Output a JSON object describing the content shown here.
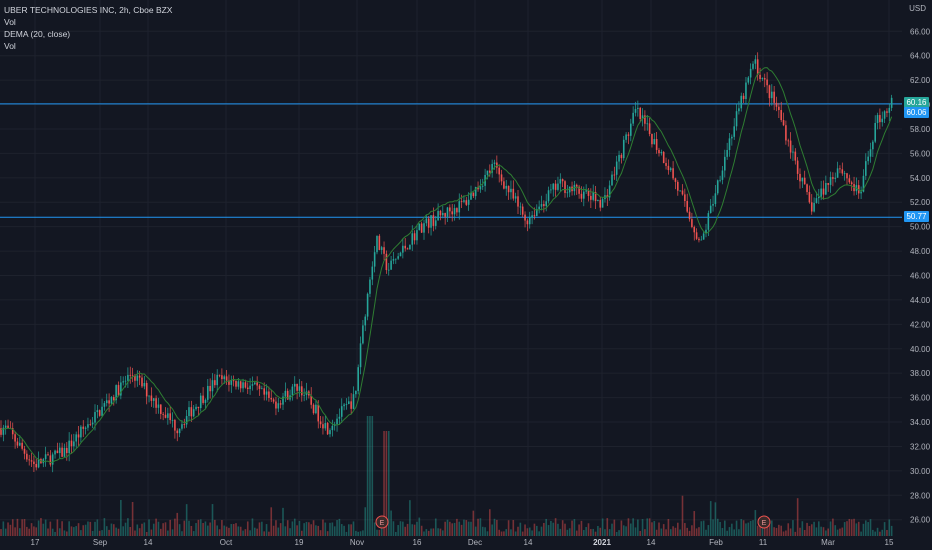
{
  "legend": {
    "symbol": "UBER TECHNOLOGIES INC, 2h, Cboe BZX",
    "vol1": "Vol",
    "dema": "DEMA (20, close)",
    "vol2": "Vol"
  },
  "axis": {
    "unit": "USD",
    "y_ticks": [
      "66.00",
      "64.00",
      "62.00",
      "60.00",
      "58.00",
      "56.00",
      "54.00",
      "52.00",
      "50.00",
      "48.00",
      "46.00",
      "44.00",
      "42.00",
      "40.00",
      "38.00",
      "36.00",
      "34.00",
      "32.00",
      "30.00",
      "28.00",
      "26.00"
    ],
    "x_ticks": [
      "17",
      "Sep",
      "14",
      "Oct",
      "19",
      "Nov",
      "16",
      "Dec",
      "14",
      "2021",
      "14",
      "Feb",
      "11",
      "Mar",
      "15"
    ],
    "x_major": [
      "2021"
    ]
  },
  "price_tags": {
    "current": "60.16",
    "line_upper": "60.06",
    "line_lower": "50.77"
  },
  "earnings_markers": [
    "E",
    "E"
  ],
  "colors": {
    "background": "#131722",
    "up": "#26a69a",
    "down": "#ef5350",
    "dema": "#2e7d32",
    "hline": "#2196f3",
    "grid": "#1e222d"
  },
  "chart_data": {
    "type": "candlestick",
    "title": "UBER TECHNOLOGIES INC, 2h, Cboe BZX",
    "ylabel": "USD",
    "ylim": [
      25,
      67
    ],
    "indicator": "DEMA (20, close)",
    "horizontal_lines": [
      60.06,
      50.77
    ],
    "last_price": 60.16,
    "price_path_approx": [
      {
        "x": "Aug 10",
        "close": 33.5
      },
      {
        "x": "Aug 17",
        "close": 30.5
      },
      {
        "x": "Aug 24",
        "close": 31.5
      },
      {
        "x": "Sep 1",
        "close": 34.5
      },
      {
        "x": "Sep 10",
        "close": 38.0
      },
      {
        "x": "Sep 21",
        "close": 33.5
      },
      {
        "x": "Oct 1",
        "close": 37.5
      },
      {
        "x": "Oct 9",
        "close": 37.0
      },
      {
        "x": "Oct 15",
        "close": 35.5
      },
      {
        "x": "Oct 21",
        "close": 37.0
      },
      {
        "x": "Oct 28",
        "close": 33.5
      },
      {
        "x": "Nov 4",
        "close": 36.0
      },
      {
        "x": "Nov 5",
        "close": 40.0
      },
      {
        "x": "Nov 9",
        "close": 49.0
      },
      {
        "x": "Nov 12",
        "close": 46.5
      },
      {
        "x": "Nov 20",
        "close": 50.0
      },
      {
        "x": "Dec 1",
        "close": 52.0
      },
      {
        "x": "Dec 8",
        "close": 55.0
      },
      {
        "x": "Dec 16",
        "close": 50.5
      },
      {
        "x": "Dec 24",
        "close": 53.5
      },
      {
        "x": "Jan 4",
        "close": 52.0
      },
      {
        "x": "Jan 12",
        "close": 59.5
      },
      {
        "x": "Jan 20",
        "close": 55.0
      },
      {
        "x": "Jan 28",
        "close": 48.5
      },
      {
        "x": "Feb 3",
        "close": 56.0
      },
      {
        "x": "Feb 10",
        "close": 63.5
      },
      {
        "x": "Feb 16",
        "close": 59.5
      },
      {
        "x": "Feb 24",
        "close": 51.5
      },
      {
        "x": "Mar 3",
        "close": 55.0
      },
      {
        "x": "Mar 8",
        "close": 52.5
      },
      {
        "x": "Mar 12",
        "close": 58.5
      },
      {
        "x": "Mar 16",
        "close": 60.2
      }
    ]
  }
}
